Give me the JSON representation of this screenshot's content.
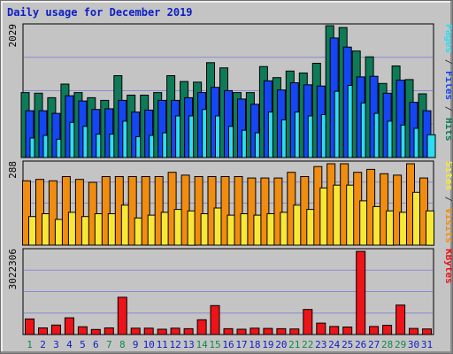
{
  "title": "Daily usage for December 2019",
  "chart_data": [
    {
      "type": "bar",
      "title": "Pages / Files / Hits",
      "ylim": [
        0,
        2029
      ],
      "max_label": "2029",
      "categories": [
        "1",
        "2",
        "3",
        "4",
        "5",
        "6",
        "7",
        "8",
        "9",
        "10",
        "11",
        "12",
        "13",
        "14",
        "15",
        "16",
        "17",
        "18",
        "19",
        "20",
        "21",
        "22",
        "23",
        "24",
        "25",
        "26",
        "27",
        "28",
        "29",
        "30",
        "31"
      ],
      "series": [
        {
          "name": "Hits",
          "color": "#0e7a58",
          "values": [
            1000,
            990,
            920,
            1130,
            1000,
            920,
            880,
            1260,
            960,
            960,
            1000,
            1260,
            1170,
            1160,
            1460,
            1380,
            1000,
            1000,
            1400,
            1230,
            1330,
            1300,
            1450,
            2029,
            2000,
            1640,
            1550,
            1140,
            1410,
            1200,
            980
          ]
        },
        {
          "name": "Files",
          "color": "#1446f4",
          "values": [
            720,
            720,
            680,
            950,
            870,
            740,
            750,
            880,
            700,
            730,
            880,
            880,
            920,
            1000,
            1080,
            1030,
            900,
            820,
            1180,
            1040,
            1150,
            1120,
            1100,
            1840,
            1700,
            1240,
            1250,
            990,
            1190,
            850,
            720
          ]
        },
        {
          "name": "Pages",
          "color": "#2ddcf2",
          "values": [
            300,
            340,
            280,
            540,
            480,
            360,
            360,
            560,
            320,
            340,
            380,
            640,
            640,
            740,
            640,
            480,
            420,
            380,
            700,
            580,
            700,
            640,
            660,
            1020,
            1110,
            840,
            680,
            560,
            500,
            450,
            350
          ]
        }
      ],
      "legend": [
        "Pages",
        " / ",
        "Files",
        " / ",
        "Hits"
      ]
    },
    {
      "type": "bar",
      "title": "Sites / Visits",
      "ylim": [
        0,
        288
      ],
      "max_label": "288",
      "categories": [
        "1",
        "2",
        "3",
        "4",
        "5",
        "6",
        "7",
        "8",
        "9",
        "10",
        "11",
        "12",
        "13",
        "14",
        "15",
        "16",
        "17",
        "18",
        "19",
        "20",
        "21",
        "22",
        "23",
        "24",
        "25",
        "26",
        "27",
        "28",
        "29",
        "30",
        "31"
      ],
      "series": [
        {
          "name": "Visits",
          "color": "#f08c10",
          "values": [
            225,
            230,
            225,
            240,
            230,
            220,
            240,
            240,
            240,
            240,
            240,
            255,
            245,
            240,
            240,
            240,
            240,
            235,
            235,
            235,
            255,
            240,
            275,
            285,
            285,
            255,
            265,
            250,
            245,
            285,
            235
          ]
        },
        {
          "name": "Sites",
          "color": "#f7e838",
          "values": [
            100,
            110,
            90,
            115,
            100,
            110,
            110,
            140,
            95,
            105,
            115,
            125,
            120,
            110,
            130,
            105,
            110,
            105,
            110,
            115,
            140,
            125,
            200,
            210,
            210,
            155,
            135,
            120,
            115,
            185,
            120
          ]
        }
      ],
      "legend": [
        "Sites",
        " / ",
        "Visits"
      ]
    },
    {
      "type": "bar",
      "title": "KBytes",
      "ylim": [
        0,
        3022306
      ],
      "max_label": "3022306",
      "categories": [
        "1",
        "2",
        "3",
        "4",
        "5",
        "6",
        "7",
        "8",
        "9",
        "10",
        "11",
        "12",
        "13",
        "14",
        "15",
        "16",
        "17",
        "18",
        "19",
        "20",
        "21",
        "22",
        "23",
        "24",
        "25",
        "26",
        "27",
        "28",
        "29",
        "30",
        "31"
      ],
      "series": [
        {
          "name": "KBytes",
          "color": "#ec1418",
          "values": [
            560000,
            240000,
            340000,
            600000,
            280000,
            180000,
            240000,
            1340000,
            230000,
            230000,
            190000,
            230000,
            210000,
            530000,
            1040000,
            210000,
            190000,
            230000,
            220000,
            210000,
            200000,
            900000,
            410000,
            290000,
            270000,
            2990000,
            290000,
            330000,
            1060000,
            220000,
            200000
          ]
        }
      ],
      "legend": [
        "KBytes"
      ]
    }
  ],
  "weekend_days": [
    "1",
    "7",
    "8",
    "14",
    "15",
    "21",
    "22",
    "28",
    "29"
  ],
  "colors": {
    "weekday_label": "#0c1ec4",
    "weekend_label": "#108a4a",
    "plot_bg": "#c4c4c4",
    "grid": "#5b5be0"
  }
}
